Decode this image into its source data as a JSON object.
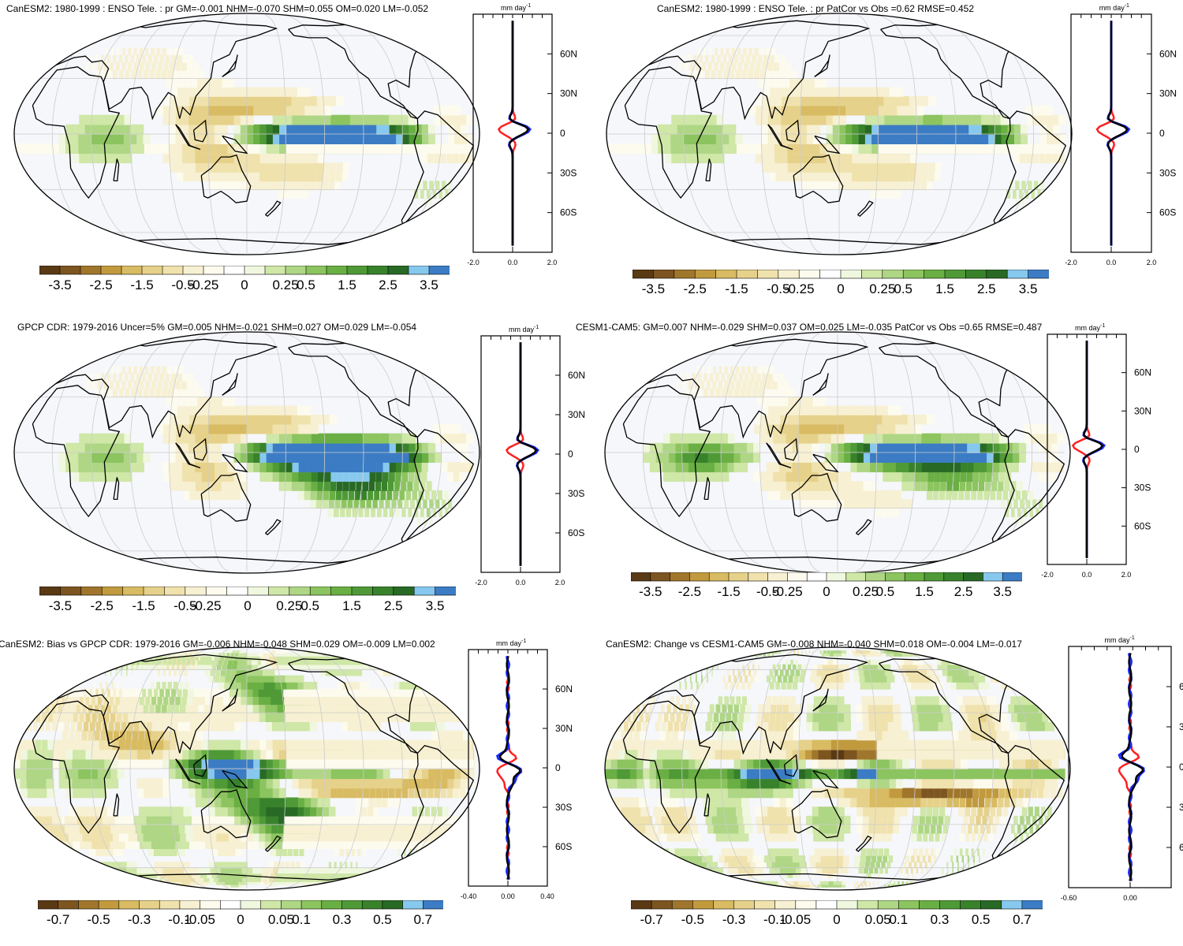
{
  "units": "mm day-1",
  "unit_text": "mm day",
  "unit_exp": "-1",
  "colors": {
    "palette": [
      "#5a3a14",
      "#7d5520",
      "#a0762c",
      "#c29a3e",
      "#d8bb62",
      "#e6d18a",
      "#f0e2ad",
      "#f7f0d2",
      "#fdfbee",
      "#ffffff",
      "#f0f7df",
      "#cfe7a7",
      "#aed685",
      "#8cc45f",
      "#6aaf44",
      "#4f9a36",
      "#39822c",
      "#286a25",
      "#87c8ee",
      "#3b7cc4"
    ],
    "ocean": "#f5f7fb",
    "land_line": "#000000",
    "grid_line": "#cccccc",
    "profile_red": "#ff2020",
    "profile_blue": "#1a2bff",
    "profile_black": "#000000"
  },
  "panels": [
    {
      "title": "CanESM2: 1980-1999 : ENSO Tele. : pr GM=-0.001 NHM=-0.070 SHM=0.055 OM=0.020 LM=-0.052",
      "profile_xticks": [
        "-2.0",
        "0.0",
        "2.0"
      ],
      "profile_xrange": [
        -2,
        2
      ],
      "colorbar_labels": [
        "-3.5",
        "-2.5",
        "-1.5",
        "-0.5",
        "-0.25",
        "0",
        "0.25",
        "0.5",
        "1.5",
        "2.5",
        "3.5"
      ],
      "pattern": "model_enso"
    },
    {
      "title": "CanESM2: 1980-1999 : ENSO Tele. : pr PatCor vs Obs =0.62 RMSE=0.452",
      "profile_xticks": [
        "-2.0",
        "0.0",
        "2.0"
      ],
      "profile_xrange": [
        -2,
        2
      ],
      "colorbar_labels": [
        "-3.5",
        "-2.5",
        "-1.5",
        "-0.5",
        "-0.25",
        "0",
        "0.25",
        "0.5",
        "1.5",
        "2.5",
        "3.5"
      ],
      "pattern": "model_enso"
    },
    {
      "title": "GPCP CDR: 1979-2016 Uncer=5% GM=0.005 NHM=-0.021 SHM=0.027 OM=0.029 LM=-0.054",
      "profile_xticks": [
        "-2.0",
        "0.0",
        "2.0"
      ],
      "profile_xrange": [
        -2,
        2
      ],
      "colorbar_labels": [
        "-3.5",
        "-2.5",
        "-1.5",
        "-0.5",
        "-0.25",
        "0",
        "0.25",
        "0.5",
        "1.5",
        "2.5",
        "3.5"
      ],
      "pattern": "obs_enso"
    },
    {
      "title": "CESM1-CAM5: GM=0.007 NHM=-0.029 SHM=0.037 OM=0.025 LM=-0.035 PatCor vs Obs =0.65 RMSE=0.487",
      "profile_xticks": [
        "-2.0",
        "0.0",
        "2.0"
      ],
      "profile_xrange": [
        -2,
        2
      ],
      "colorbar_labels": [
        "-3.5",
        "-2.5",
        "-1.5",
        "-0.5",
        "-0.25",
        "0",
        "0.25",
        "0.5",
        "1.5",
        "2.5",
        "3.5"
      ],
      "pattern": "cesm_enso"
    },
    {
      "title": "CanESM2: Bias vs GPCP CDR: 1979-2016 GM=-0.006 NHM=-0.048 SHM=0.029 OM=-0.009 LM=0.002",
      "profile_xticks": [
        "-0.40",
        "0.00",
        "0.40"
      ],
      "profile_xrange": [
        -0.4,
        0.4
      ],
      "colorbar_labels": [
        "-0.7",
        "-0.5",
        "-0.3",
        "-0.1",
        "-0.05",
        "0",
        "0.05",
        "0.1",
        "0.3",
        "0.5",
        "0.7"
      ],
      "pattern": "bias"
    },
    {
      "title": "CanESM2: Change vs CESM1-CAM5 GM=-0.008 NHM=-0.040 SHM=0.018 OM=-0.004 LM=-0.017",
      "profile_xticks": [
        "-0.60",
        "0.00"
      ],
      "profile_xrange": [
        -0.6,
        0.4
      ],
      "colorbar_labels": [
        "-0.7",
        "-0.5",
        "-0.3",
        "-0.1",
        "-0.05",
        "0",
        "0.05",
        "0.1",
        "0.3",
        "0.5",
        "0.7"
      ],
      "pattern": "change"
    }
  ],
  "profile_yticks": [
    "60N",
    "30N",
    "0",
    "30S",
    "60S"
  ],
  "profile_ytick_lats": [
    60,
    30,
    0,
    -30,
    -60
  ]
}
